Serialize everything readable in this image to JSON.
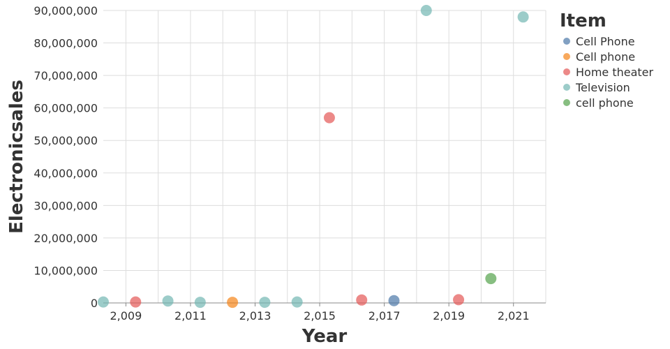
{
  "chart_data": {
    "type": "scatter",
    "xlabel": "Year",
    "ylabel": "Electronicsales",
    "xlim": [
      2008.3,
      2022
    ],
    "ylim": [
      0,
      90000000
    ],
    "x_ticks": [
      2009,
      2011,
      2013,
      2015,
      2017,
      2019,
      2021
    ],
    "x_tick_labels": [
      "2,009",
      "2,011",
      "2,013",
      "2,015",
      "2,017",
      "2,019",
      "2,021"
    ],
    "y_ticks": [
      0,
      10000000,
      20000000,
      30000000,
      40000000,
      50000000,
      60000000,
      70000000,
      80000000,
      90000000
    ],
    "y_tick_labels": [
      "0",
      "10,000,000",
      "20,000,000",
      "30,000,000",
      "40,000,000",
      "50,000,000",
      "60,000,000",
      "70,000,000",
      "80,000,000",
      "90,000,000"
    ],
    "grid": true,
    "legend": {
      "title": "Item",
      "placement": "right",
      "entries": [
        {
          "name": "Cell Phone",
          "color": "#4c78a8"
        },
        {
          "name": "Cell phone",
          "color": "#f58518"
        },
        {
          "name": "Home theater",
          "color": "#e45756"
        },
        {
          "name": "Television",
          "color": "#72b7b2"
        },
        {
          "name": "cell phone",
          "color": "#54a24b"
        }
      ]
    },
    "points": [
      {
        "x": 2008.3,
        "y": 300000,
        "item": "Television"
      },
      {
        "x": 2009.3,
        "y": 300000,
        "item": "Home theater"
      },
      {
        "x": 2010.3,
        "y": 600000,
        "item": "Television"
      },
      {
        "x": 2011.3,
        "y": 200000,
        "item": "Television"
      },
      {
        "x": 2012.3,
        "y": 200000,
        "item": "Cell phone"
      },
      {
        "x": 2013.3,
        "y": 200000,
        "item": "Television"
      },
      {
        "x": 2014.3,
        "y": 300000,
        "item": "Television"
      },
      {
        "x": 2015.3,
        "y": 57000000,
        "item": "Home theater"
      },
      {
        "x": 2016.3,
        "y": 900000,
        "item": "Home theater"
      },
      {
        "x": 2017.3,
        "y": 700000,
        "item": "Cell Phone"
      },
      {
        "x": 2018.3,
        "y": 90000000,
        "item": "Television"
      },
      {
        "x": 2019.3,
        "y": 1000000,
        "item": "Home theater"
      },
      {
        "x": 2020.3,
        "y": 7500000,
        "item": "cell phone"
      },
      {
        "x": 2021.3,
        "y": 88000000,
        "item": "Television"
      }
    ]
  }
}
